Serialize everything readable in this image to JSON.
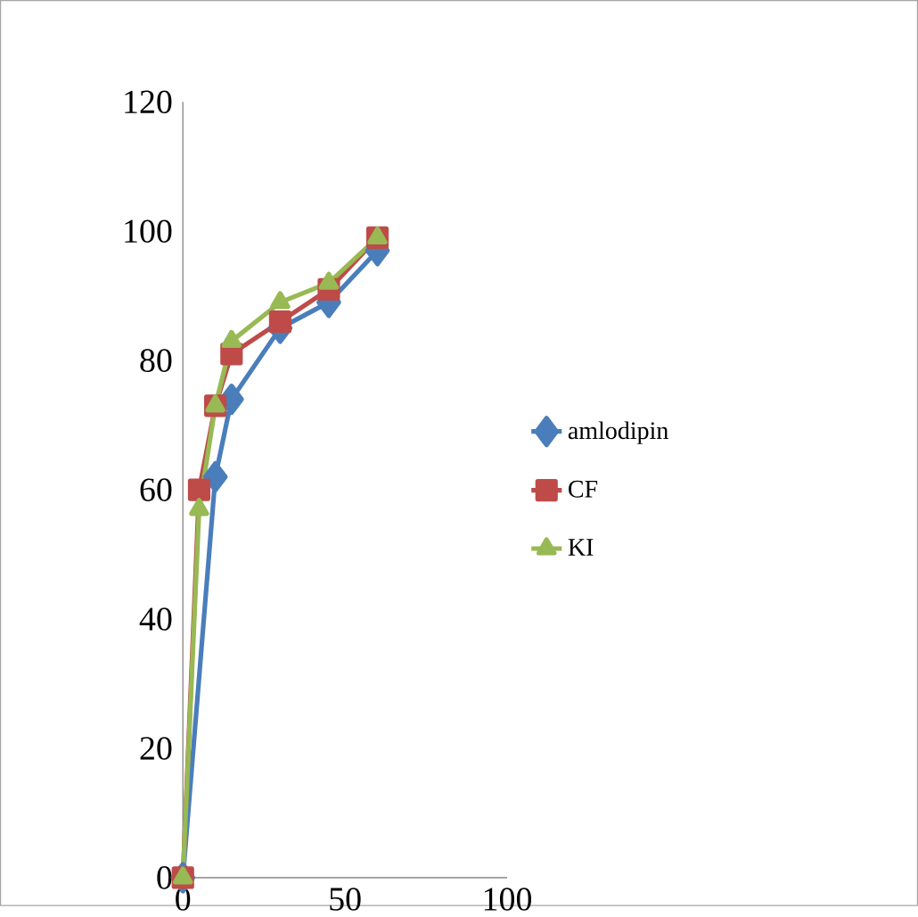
{
  "chart_data": {
    "type": "line",
    "xlim": [
      0,
      100
    ],
    "ylim": [
      0,
      120
    ],
    "xticks": [
      0,
      50,
      100
    ],
    "yticks": [
      0,
      20,
      40,
      60,
      80,
      100,
      120
    ],
    "grid": false,
    "legend": "right",
    "line_style": "solid",
    "series": [
      {
        "name": "amlodipin",
        "color": "#4a7ebb",
        "marker": "diamond",
        "x": [
          0,
          10,
          15,
          30,
          45,
          60
        ],
        "values": [
          0,
          62,
          74,
          85,
          89,
          97
        ]
      },
      {
        "name": "CF",
        "color": "#be4b48",
        "marker": "square",
        "x": [
          0,
          5,
          10,
          15,
          30,
          45,
          60
        ],
        "values": [
          0,
          60,
          73,
          81,
          86,
          91,
          99
        ]
      },
      {
        "name": "KI",
        "color": "#98b954",
        "marker": "triangle",
        "x": [
          0,
          5,
          10,
          15,
          30,
          45,
          60
        ],
        "values": [
          0,
          57,
          73,
          83,
          89,
          92,
          99
        ]
      }
    ]
  }
}
